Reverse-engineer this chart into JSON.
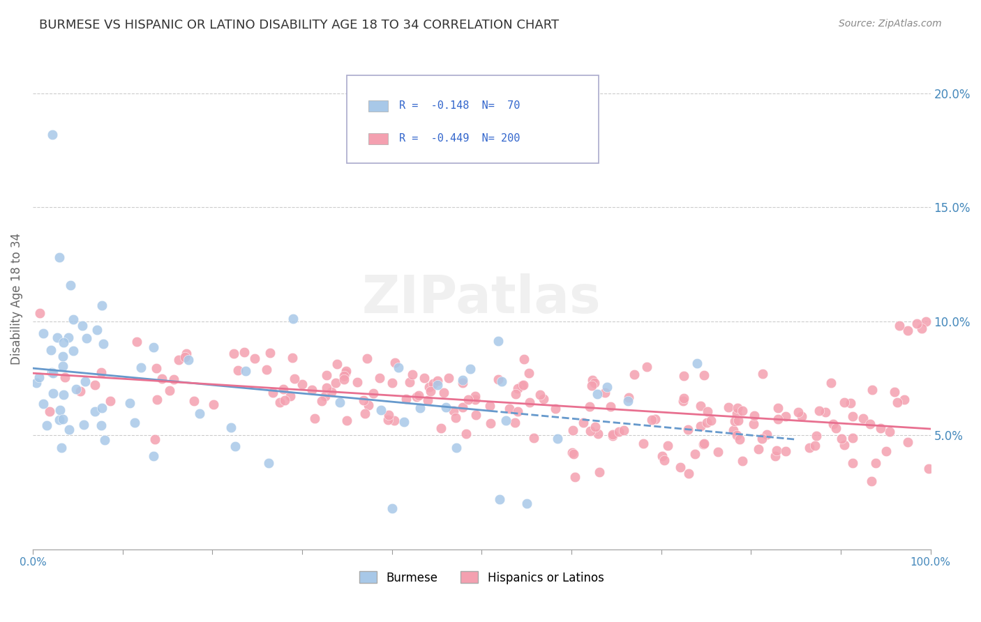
{
  "title": "BURMESE VS HISPANIC OR LATINO DISABILITY AGE 18 TO 34 CORRELATION CHART",
  "source": "Source: ZipAtlas.com",
  "ylabel": "Disability Age 18 to 34",
  "yticks": [
    0.05,
    0.1,
    0.15,
    0.2
  ],
  "ytick_labels": [
    "5.0%",
    "10.0%",
    "15.0%",
    "20.0%"
  ],
  "legend": {
    "burmese_R": "-0.148",
    "burmese_N": "70",
    "hispanic_R": "-0.449",
    "hispanic_N": "200"
  },
  "burmese_color": "#a8c8e8",
  "hispanic_color": "#f4a0b0",
  "burmese_line_color": "#6699cc",
  "hispanic_line_color": "#e87090",
  "background_color": "#ffffff",
  "watermark": "ZIPatlas"
}
